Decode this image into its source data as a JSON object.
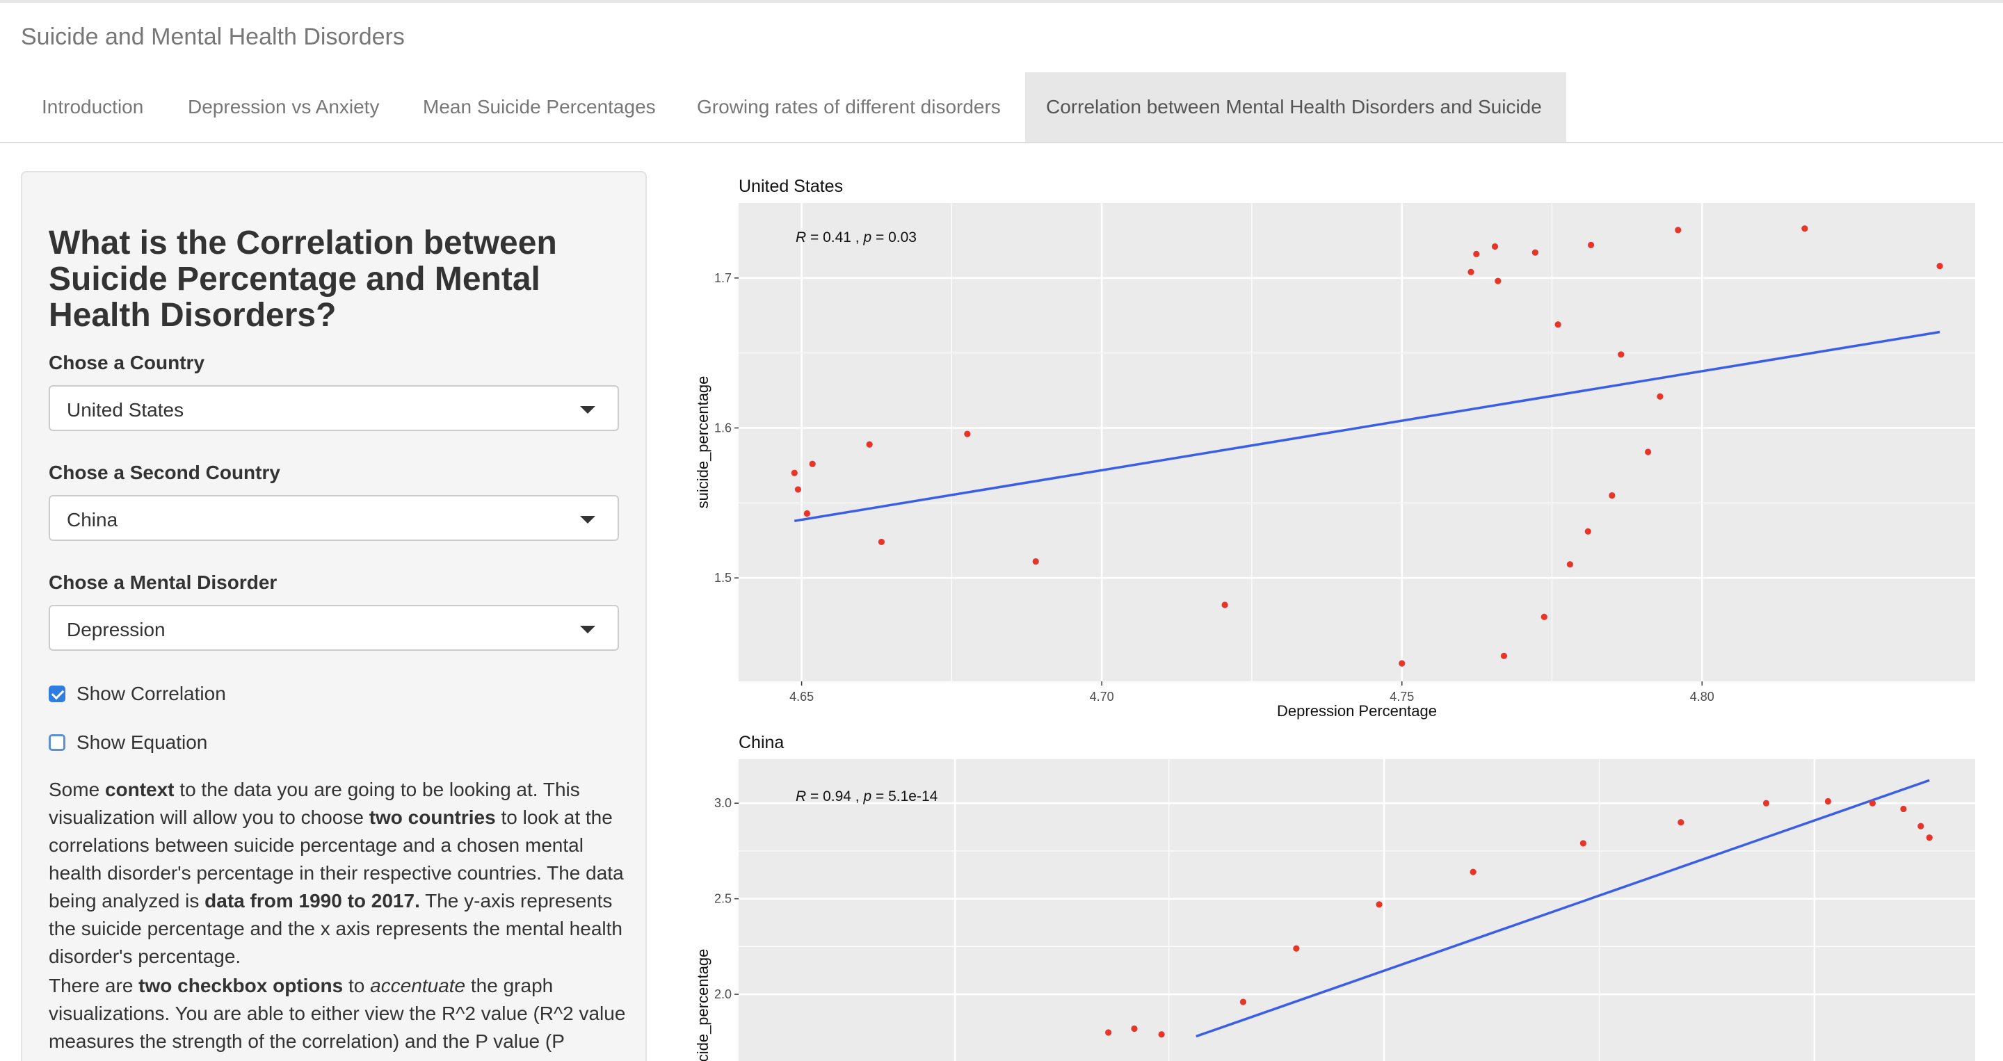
{
  "app": {
    "title": "Suicide and Mental Health Disorders"
  },
  "tabs": [
    {
      "label": "Introduction",
      "active": false
    },
    {
      "label": "Depression vs Anxiety",
      "active": false
    },
    {
      "label": "Mean Suicide Percentages",
      "active": false
    },
    {
      "label": "Growing rates of different disorders",
      "active": false
    },
    {
      "label": "Correlation between Mental Health Disorders and Suicide",
      "active": true
    }
  ],
  "sidebar": {
    "title": "What is the Correlation between Suicide Percentage and Mental Health Disorders?",
    "country_label": "Chose a Country",
    "country_value": "United States",
    "second_country_label": "Chose a Second Country",
    "second_country_value": "China",
    "disorder_label": "Chose a Mental Disorder",
    "disorder_value": "Depression",
    "show_correlation_label": "Show Correlation",
    "show_correlation_checked": true,
    "show_equation_label": "Show Equation",
    "show_equation_checked": false,
    "para1": {
      "t1": "Some ",
      "b1": "context",
      "t2": " to the data you are going to be looking at. This visualization will allow you to choose ",
      "b2": "two countries",
      "t3": " to look at the correlations between suicide percentage and a chosen mental health disorder's percentage in their respective countries. The data being analyzed is ",
      "b3": "data from 1990 to 2017.",
      "t4": " The y-axis represents the suicide percentage and the x axis represents the mental health disorder's percentage."
    },
    "para2": {
      "t1": "There are ",
      "b1": "two checkbox options",
      "t2": " to ",
      "i1": "accentuate",
      "t3": " the graph visualizations. You are able to either view the R^2 value (R^2 value measures the strength of the correlation) and the P value (P"
    }
  },
  "colors": {
    "point": "#e8352a",
    "line": "#3b5ee8",
    "panel": "#ebebeb",
    "grid": "#ffffff"
  },
  "chart_data": [
    {
      "type": "scatter",
      "title": "United States",
      "xlabel": "Depression Percentage",
      "ylabel": "suicide_percentage",
      "annotation": {
        "r_label": "R",
        "r_value": " = 0.41 , ",
        "p_label": "p",
        "p_value": " = 0.03"
      },
      "xlim": [
        4.6395,
        4.8455
      ],
      "ylim": [
        1.431,
        1.75
      ],
      "x_ticks": [
        4.65,
        4.7,
        4.75,
        4.8
      ],
      "x_tick_labels": [
        "4.65",
        "4.70",
        "4.75",
        "4.80"
      ],
      "y_ticks": [
        1.5,
        1.6,
        1.7
      ],
      "y_tick_labels": [
        "1.5",
        "1.6",
        "1.7"
      ],
      "points": [
        [
          4.6488,
          1.57
        ],
        [
          4.6494,
          1.559
        ],
        [
          4.6509,
          1.543
        ],
        [
          4.6518,
          1.576
        ],
        [
          4.6613,
          1.589
        ],
        [
          4.6633,
          1.524
        ],
        [
          4.6776,
          1.596
        ],
        [
          4.689,
          1.511
        ],
        [
          4.7205,
          1.482
        ],
        [
          4.75,
          1.443
        ],
        [
          4.7615,
          1.704
        ],
        [
          4.7624,
          1.716
        ],
        [
          4.7655,
          1.721
        ],
        [
          4.766,
          1.698
        ],
        [
          4.767,
          1.448
        ],
        [
          4.7722,
          1.717
        ],
        [
          4.7737,
          1.474
        ],
        [
          4.776,
          1.669
        ],
        [
          4.778,
          1.509
        ],
        [
          4.781,
          1.531
        ],
        [
          4.7815,
          1.722
        ],
        [
          4.785,
          1.555
        ],
        [
          4.7865,
          1.649
        ],
        [
          4.791,
          1.584
        ],
        [
          4.793,
          1.621
        ],
        [
          4.796,
          1.732
        ],
        [
          4.8171,
          1.733
        ],
        [
          4.8396,
          1.708
        ]
      ],
      "fit": [
        [
          4.6488,
          1.538
        ],
        [
          4.8396,
          1.664
        ]
      ]
    },
    {
      "type": "scatter",
      "title": "China",
      "xlabel": "",
      "ylabel": "suicide_percentage",
      "annotation": {
        "r_label": "R",
        "r_value": " = 0.94 , ",
        "p_label": "p",
        "p_value": " = 5.1e-14"
      },
      "x_ticks": [],
      "x_tick_labels": [],
      "y_ticks": [
        2.0,
        2.5,
        3.0
      ],
      "y_tick_labels": [
        "2.0",
        "2.5",
        "3.0"
      ],
      "ylim": [
        1.6,
        3.23
      ],
      "points": [
        [
          0.299,
          1.8
        ],
        [
          0.32,
          1.82
        ],
        [
          0.342,
          1.79
        ],
        [
          0.408,
          1.96
        ],
        [
          0.451,
          2.24
        ],
        [
          0.518,
          2.47
        ],
        [
          0.594,
          2.64
        ],
        [
          0.683,
          2.79
        ],
        [
          0.762,
          2.9
        ],
        [
          0.831,
          3.0
        ],
        [
          0.881,
          3.01
        ],
        [
          0.917,
          3.0
        ],
        [
          0.942,
          2.97
        ],
        [
          0.956,
          2.88
        ],
        [
          0.963,
          2.82
        ]
      ],
      "fit": [
        [
          0.37,
          1.78
        ],
        [
          0.963,
          3.12
        ]
      ]
    }
  ]
}
